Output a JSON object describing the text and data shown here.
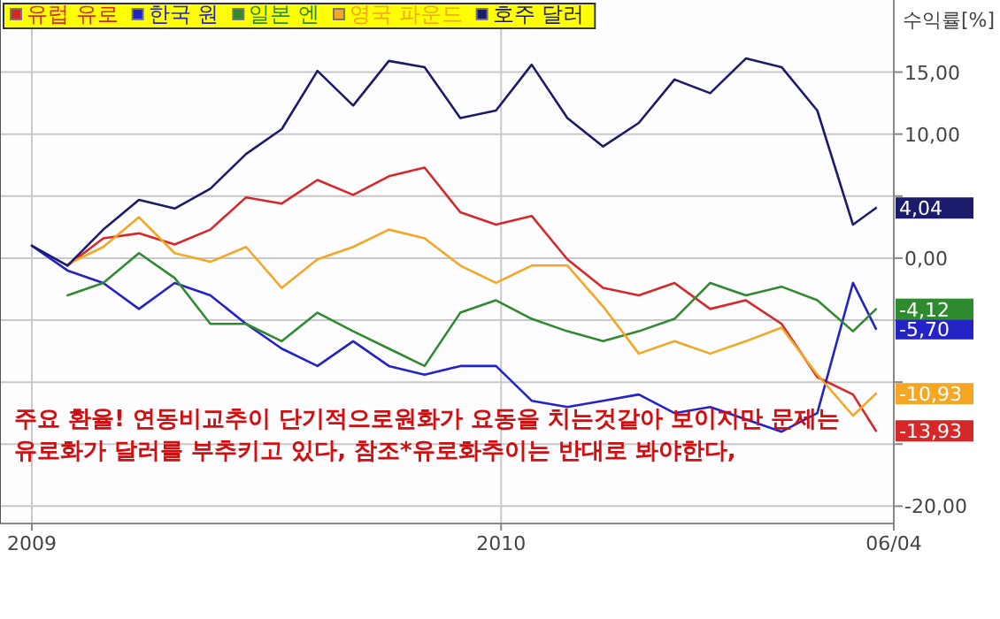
{
  "chart_data": {
    "type": "line",
    "ylabel": "수익률[%]",
    "x": [
      "2009-07-01",
      "2009-07-15",
      "2009-07-29",
      "2009-08-12",
      "2009-08-26",
      "2009-09-09",
      "2009-09-23",
      "2009-10-07",
      "2009-10-21",
      "2009-11-04",
      "2009-11-18",
      "2009-12-02",
      "2009-12-16",
      "2009-12-30",
      "2010-01-13",
      "2010-01-27",
      "2010-02-10",
      "2010-02-24",
      "2010-03-10",
      "2010-03-24",
      "2010-04-07",
      "2010-04-21",
      "2010-05-05",
      "2010-05-19",
      "2010-05-28"
    ],
    "series": [
      {
        "name": "유럽 유로",
        "color": "#d62828",
        "values": [
          null,
          -0.6,
          1.6,
          2.0,
          1.1,
          2.3,
          4.9,
          4.4,
          6.3,
          5.1,
          6.6,
          7.3,
          3.7,
          2.7,
          3.4,
          -0.1,
          -2.4,
          -3.0,
          -2.0,
          -4.1,
          -3.4,
          -5.3,
          -9.6,
          -11.0,
          -13.93
        ],
        "value_labels": [
          null,
          null,
          null,
          null,
          null,
          null,
          null,
          null,
          null,
          null,
          null,
          null,
          null,
          null,
          null,
          null,
          null,
          null,
          null,
          null,
          null,
          null,
          null,
          null,
          "-13,93"
        ]
      },
      {
        "name": "한국 원",
        "color": "#2323c8",
        "values": [
          1.0,
          -1.0,
          -2.0,
          -4.1,
          -2.0,
          -3.0,
          -5.3,
          -7.3,
          -8.7,
          -6.7,
          -8.7,
          -9.4,
          -8.7,
          -8.7,
          -11.5,
          -12.0,
          -11.5,
          -11.0,
          -12.5,
          -12.0,
          -13.0,
          -14.0,
          -12.5,
          -2.0,
          -5.7
        ],
        "value_labels": [
          null,
          null,
          null,
          null,
          null,
          null,
          null,
          null,
          null,
          null,
          null,
          null,
          null,
          null,
          null,
          null,
          null,
          null,
          null,
          null,
          null,
          null,
          null,
          null,
          "-5,70"
        ]
      },
      {
        "name": "일본 엔",
        "color": "#2e8b2e",
        "values": [
          null,
          -3.0,
          -2.0,
          0.4,
          -1.6,
          -5.3,
          -5.3,
          -6.7,
          -4.4,
          -5.9,
          -7.3,
          -8.7,
          -4.4,
          -3.4,
          -4.9,
          -5.9,
          -6.7,
          -5.9,
          -4.9,
          -2.0,
          -3.0,
          -2.3,
          -3.4,
          -5.9,
          -4.12
        ],
        "value_labels": [
          null,
          null,
          null,
          null,
          null,
          null,
          null,
          null,
          null,
          null,
          null,
          null,
          null,
          null,
          null,
          null,
          null,
          null,
          null,
          null,
          null,
          null,
          null,
          null,
          "-4,12"
        ]
      },
      {
        "name": "영국 파운드",
        "color": "#f5a623",
        "values": [
          null,
          -0.5,
          0.9,
          3.3,
          0.4,
          -0.3,
          0.9,
          -2.4,
          -0.1,
          0.9,
          2.3,
          1.6,
          -0.6,
          -2.0,
          -0.6,
          -0.6,
          -3.9,
          -7.7,
          -6.7,
          -7.7,
          -6.7,
          -5.6,
          -9.4,
          -12.7,
          -10.93
        ],
        "value_labels": [
          null,
          null,
          null,
          null,
          null,
          null,
          null,
          null,
          null,
          null,
          null,
          null,
          null,
          null,
          null,
          null,
          null,
          null,
          null,
          null,
          null,
          null,
          null,
          null,
          "-10,93"
        ]
      },
      {
        "name": "호주 달러",
        "color": "#1b1b6b",
        "values": [
          1.0,
          -0.6,
          2.3,
          4.7,
          4.0,
          5.6,
          8.4,
          10.4,
          15.1,
          12.3,
          15.9,
          15.4,
          11.3,
          11.9,
          15.6,
          11.3,
          9.0,
          10.9,
          14.4,
          13.3,
          16.1,
          15.4,
          11.9,
          2.7,
          4.04
        ],
        "value_labels": [
          null,
          null,
          null,
          null,
          null,
          null,
          null,
          null,
          null,
          null,
          null,
          null,
          null,
          null,
          null,
          null,
          null,
          null,
          null,
          null,
          null,
          null,
          null,
          null,
          "4,04"
        ]
      }
    ],
    "xlim": [
      "2009-07-01",
      "2010-06-04"
    ],
    "xticks": [
      {
        "value": "2009-07-01",
        "label": "2009"
      },
      {
        "value": "2010-01-01",
        "label": "2010"
      },
      {
        "value": "2010-06-04",
        "label": "06/04"
      }
    ],
    "ylim": [
      -21.4,
      20.1
    ],
    "yticks": [
      {
        "value": 15,
        "label": "15,00"
      },
      {
        "value": 10,
        "label": "10,00"
      },
      {
        "value": 5,
        "label": null
      },
      {
        "value": 0,
        "label": "0,00"
      },
      {
        "value": -5,
        "label": null
      },
      {
        "value": -10,
        "label": null
      },
      {
        "value": -15,
        "label": null
      },
      {
        "value": -20,
        "label": "-20,00"
      }
    ],
    "grid": true,
    "legend": "top left",
    "annotations": [
      "주요 환율! 연동비교추이 단기적으로원화가 요동을 치는것같아 보이지만 문제는 유로화가 달러를 부추키고 있다, 참조*유로화추이는 반대로 봐야한다,"
    ]
  }
}
